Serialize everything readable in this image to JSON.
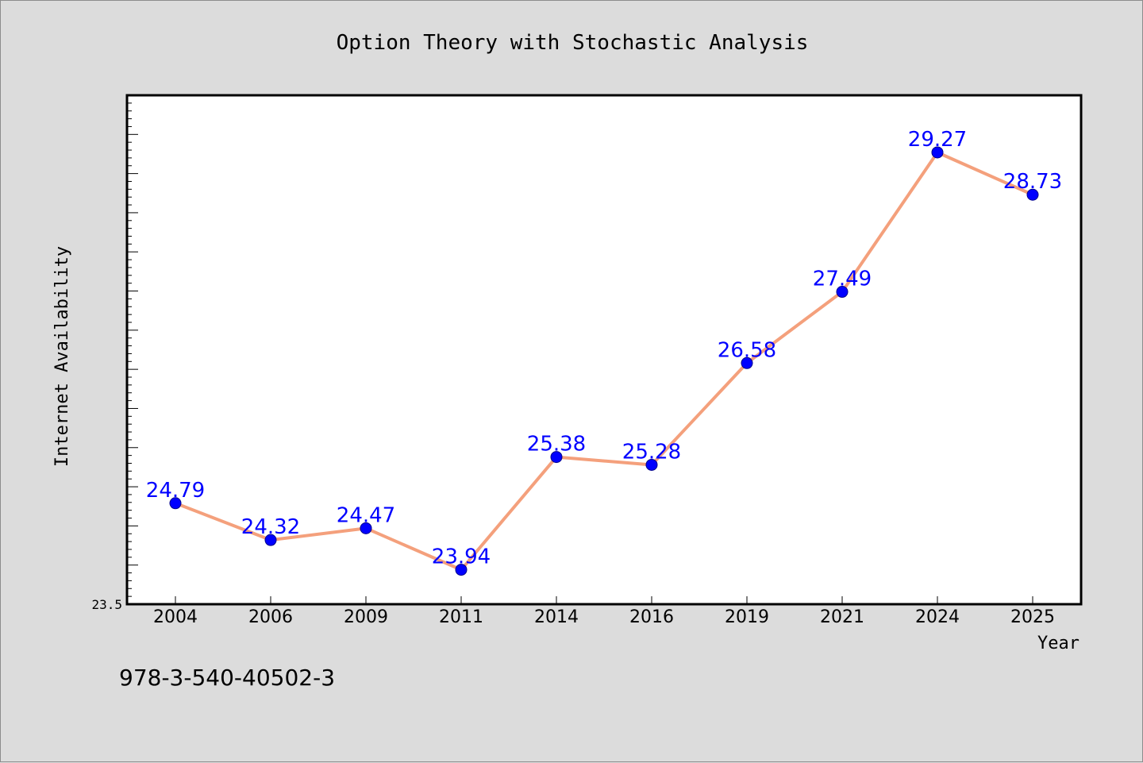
{
  "footer_text": "978-3-540-40502-3",
  "colors": {
    "background": "#dcdcdc",
    "plot_background": "#ffffff",
    "line": "#f4a07c",
    "marker": "#0000ff",
    "data_label": "#0000ff"
  },
  "chart_data": {
    "type": "line",
    "title": "Option Theory with Stochastic Analysis",
    "xlabel": "Year",
    "ylabel": "Internet Availability",
    "categories": [
      "2004",
      "2006",
      "2009",
      "2011",
      "2014",
      "2016",
      "2019",
      "2021",
      "2024",
      "2025"
    ],
    "series": [
      {
        "values": [
          24.79,
          24.32,
          24.47,
          23.94,
          25.38,
          25.28,
          26.58,
          27.49,
          29.27,
          28.73
        ],
        "labels": [
          "24.79",
          "24.32",
          "24.47",
          "23.94",
          "25.38",
          "25.28",
          "26.58",
          "27.49",
          "29.27",
          "28.73"
        ]
      }
    ],
    "ylim": [
      23.5,
      30.0
    ],
    "y_tick_labels": [
      "23.5"
    ],
    "grid": false,
    "legend": "none"
  }
}
